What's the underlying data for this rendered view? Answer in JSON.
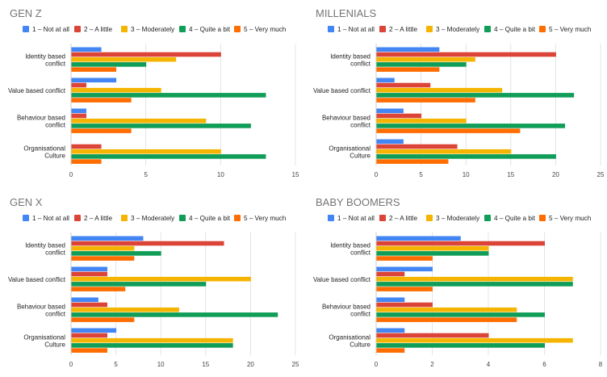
{
  "colors": {
    "legend_and_bars": [
      "#4285F4",
      "#DB4437",
      "#F4B400",
      "#0F9D58",
      "#FF6D00"
    ],
    "grid": "#dddddd",
    "axis": "#cccccc",
    "title": "#757575",
    "text": "#222222",
    "tick": "#444444"
  },
  "legend": [
    "1 – Not at all",
    "2 – A little",
    "3 – Moderately",
    "4 – Quite a bit",
    "5 – Very much"
  ],
  "chart_data": [
    {
      "type": "bar",
      "orientation": "horizontal",
      "title": "GEN Z",
      "categories": [
        "Identity based conflict",
        "Value based conflict",
        "Behaviour based conflict",
        "Organisational Culture"
      ],
      "x_ticks": [
        0,
        5,
        10,
        15
      ],
      "xlim": [
        0,
        15
      ],
      "grid": true,
      "legend_position": "top",
      "series": [
        {
          "name": "1 – Not at all",
          "values": [
            2,
            3,
            1,
            0
          ]
        },
        {
          "name": "2 – A little",
          "values": [
            10,
            1,
            1,
            2
          ]
        },
        {
          "name": "3 – Moderately",
          "values": [
            7,
            6,
            9,
            10
          ]
        },
        {
          "name": "4 – Quite a bit",
          "values": [
            5,
            13,
            12,
            13
          ]
        },
        {
          "name": "5 – Very much",
          "values": [
            3,
            4,
            4,
            2
          ]
        }
      ]
    },
    {
      "type": "bar",
      "orientation": "horizontal",
      "title": "MILLENIALS",
      "categories": [
        "Identity based conflict",
        "Value based conflict",
        "Behaviour based conflict",
        "Organisational Culture"
      ],
      "x_ticks": [
        0,
        5,
        10,
        15,
        20,
        25
      ],
      "xlim": [
        0,
        25
      ],
      "grid": true,
      "legend_position": "top",
      "series": [
        {
          "name": "1 – Not at all",
          "values": [
            7,
            2,
            3,
            3
          ]
        },
        {
          "name": "2 – A little",
          "values": [
            20,
            6,
            5,
            9
          ]
        },
        {
          "name": "3 – Moderately",
          "values": [
            11,
            14,
            10,
            15
          ]
        },
        {
          "name": "4 – Quite a bit",
          "values": [
            10,
            22,
            21,
            20
          ]
        },
        {
          "name": "5 – Very much",
          "values": [
            7,
            11,
            16,
            8
          ]
        }
      ]
    },
    {
      "type": "bar",
      "orientation": "horizontal",
      "title": "GEN X",
      "categories": [
        "Identity based conflict",
        "Value based conflict",
        "Behaviour based conflict",
        "Organisational Culture"
      ],
      "x_ticks": [
        0,
        5,
        10,
        15,
        20,
        25
      ],
      "xlim": [
        0,
        25
      ],
      "grid": true,
      "legend_position": "top",
      "series": [
        {
          "name": "1 – Not at all",
          "values": [
            8,
            4,
            3,
            5
          ]
        },
        {
          "name": "2 – A little",
          "values": [
            17,
            4,
            4,
            4
          ]
        },
        {
          "name": "3 – Moderately",
          "values": [
            7,
            20,
            12,
            18
          ]
        },
        {
          "name": "4 – Quite a bit",
          "values": [
            10,
            15,
            23,
            18
          ]
        },
        {
          "name": "5 – Very much",
          "values": [
            7,
            6,
            7,
            4
          ]
        }
      ]
    },
    {
      "type": "bar",
      "orientation": "horizontal",
      "title": "BABY BOOMERS",
      "categories": [
        "Identity based conflict",
        "Value based conflict",
        "Behaviour based conflict",
        "Organisational Culture"
      ],
      "x_ticks": [
        0,
        2,
        4,
        6,
        8
      ],
      "xlim": [
        0,
        8
      ],
      "grid": true,
      "legend_position": "top",
      "series": [
        {
          "name": "1 – Not at all",
          "values": [
            3,
            2,
            1,
            1
          ]
        },
        {
          "name": "2 – A little",
          "values": [
            6,
            1,
            2,
            4
          ]
        },
        {
          "name": "3 – Moderately",
          "values": [
            4,
            7,
            5,
            7
          ]
        },
        {
          "name": "4 – Quite a bit",
          "values": [
            4,
            7,
            6,
            6
          ]
        },
        {
          "name": "5 – Very much",
          "values": [
            2,
            2,
            5,
            1
          ]
        }
      ]
    }
  ]
}
